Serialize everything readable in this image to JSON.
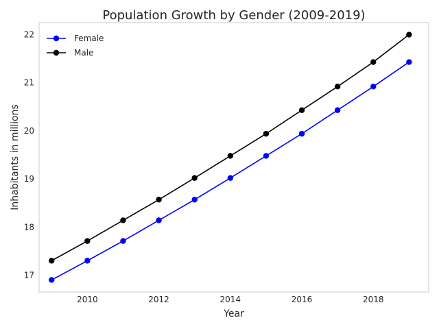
{
  "chart_data": {
    "type": "line",
    "title": "Population Growth by Gender (2009-2019)",
    "xlabel": "Year",
    "ylabel": "Inhabitants in millions",
    "x": [
      2009,
      2010,
      2011,
      2012,
      2013,
      2014,
      2015,
      2016,
      2017,
      2018,
      2019
    ],
    "xlim": [
      2008.65,
      2019.55
    ],
    "ylim": [
      16.65,
      22.25
    ],
    "xticks": [
      2010,
      2012,
      2014,
      2016,
      2018
    ],
    "yticks": [
      17,
      18,
      19,
      20,
      21,
      22
    ],
    "grid": false,
    "legend_position": "top-left",
    "series": [
      {
        "name": "Female",
        "color": "#0000ff",
        "marker": "circle",
        "values": [
          16.9,
          17.3,
          17.71,
          18.14,
          18.57,
          19.02,
          19.48,
          19.94,
          20.43,
          20.92,
          21.43
        ]
      },
      {
        "name": "Male",
        "color": "#000000",
        "marker": "circle",
        "values": [
          17.3,
          17.71,
          18.14,
          18.57,
          19.02,
          19.48,
          19.94,
          20.43,
          20.92,
          21.43,
          22.0
        ]
      }
    ]
  }
}
